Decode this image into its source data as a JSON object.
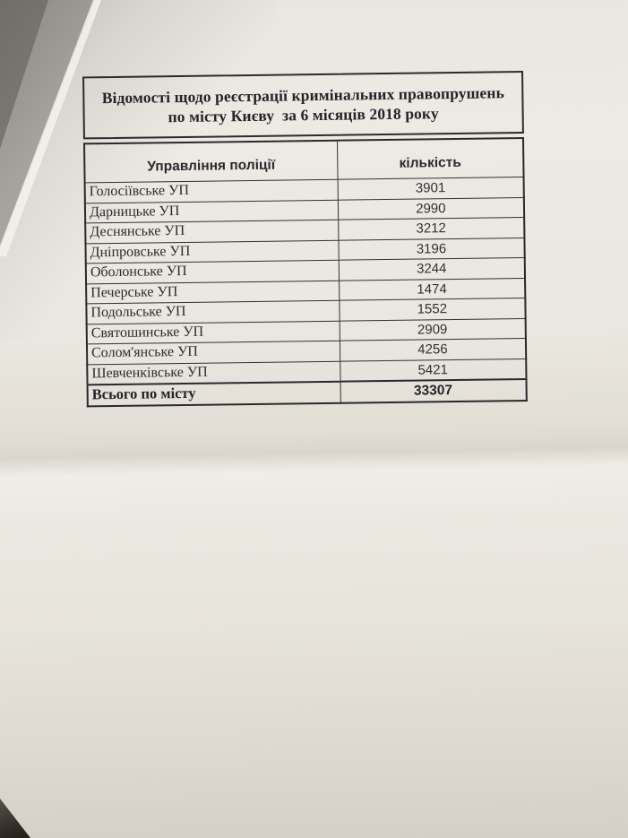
{
  "document": {
    "title_line1": "Відомості щодо реєстрації кримінальних правопрушень",
    "title_line2": "по місту Києву  за 6 місяців 2018 року",
    "table": {
      "columns": [
        "Управління поліції",
        "кількість"
      ],
      "rows": [
        {
          "label": "Голосіївське УП",
          "value": "3901"
        },
        {
          "label": "Дарницьке УП",
          "value": "2990"
        },
        {
          "label": "Деснянське УП",
          "value": "3212"
        },
        {
          "label": "Дніпровське УП",
          "value": "3196"
        },
        {
          "label": "Оболонське УП",
          "value": "3244"
        },
        {
          "label": "Печерське УП",
          "value": "1474"
        },
        {
          "label": "Подольське УП",
          "value": "1552"
        },
        {
          "label": "Святошинське УП",
          "value": "2909"
        },
        {
          "label": "Солом'янське УП",
          "value": "4256"
        },
        {
          "label": "Шевченківське УП",
          "value": "5421"
        }
      ],
      "total": {
        "label": "Всього по місту",
        "value": "33307"
      }
    }
  },
  "colors": {
    "ink": "#2a2a2e",
    "paper": "#e9e6df",
    "desk_edge_gray": "#a5a29c",
    "fold_highlight": "#f0ede7",
    "desk_corner_dark": "#211c16"
  }
}
